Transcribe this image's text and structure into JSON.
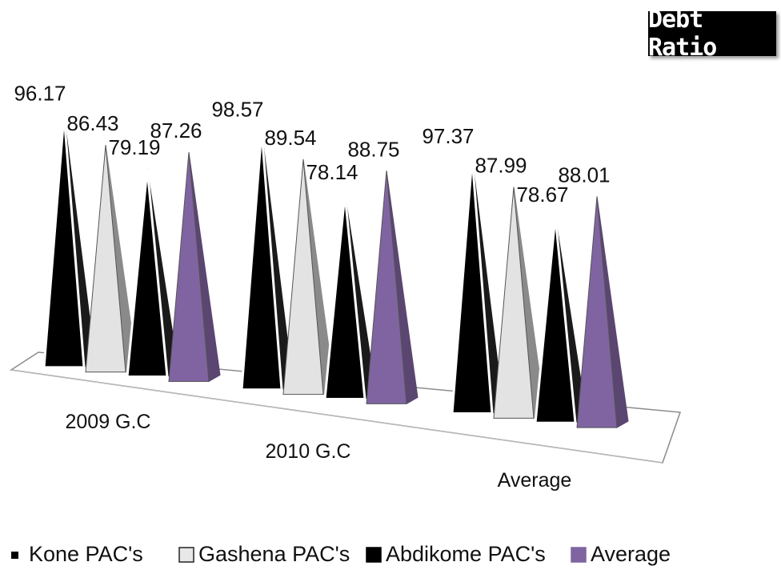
{
  "chart_data": {
    "type": "bar",
    "style": "3d-pyramid",
    "title": "Debt Ratio",
    "categories": [
      "2009 G.C",
      "2010 G.C",
      "Average"
    ],
    "series": [
      {
        "name": "Kone PAC's",
        "values": [
          96.17,
          98.57,
          97.37
        ],
        "color": "#000000"
      },
      {
        "name": "Gashena PAC's",
        "values": [
          86.43,
          89.54,
          87.99
        ],
        "color": "#d9d9d9"
      },
      {
        "name": "Abdikome PAC's",
        "values": [
          79.19,
          78.14,
          78.67
        ],
        "color": "#000000"
      },
      {
        "name": "Average",
        "values": [
          87.26,
          88.75,
          88.01
        ],
        "color": "#8064a2"
      }
    ],
    "legend_position": "bottom",
    "grid": false
  }
}
